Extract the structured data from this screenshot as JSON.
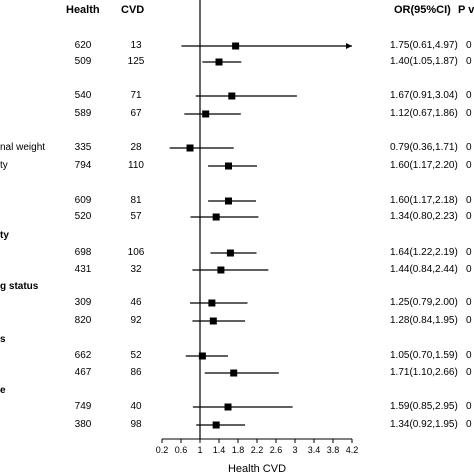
{
  "headers": {
    "health": "Health",
    "cvd": "CVD",
    "or": "OR(95%CI)",
    "p": "P v"
  },
  "groups": [
    {
      "label": "",
      "rows": [
        {
          "label": "",
          "health": "620",
          "cvd": "13",
          "or_text": "1.75(0.61,4.97)",
          "p_text": "0"
        },
        {
          "label": "",
          "health": "509",
          "cvd": "125",
          "or_text": "1.40(1.05,1.87)",
          "p_text": "0"
        }
      ]
    },
    {
      "label": "",
      "rows": [
        {
          "label": "",
          "health": "540",
          "cvd": "71",
          "or_text": "1.67(0.91,3.04)",
          "p_text": "0"
        },
        {
          "label": "",
          "health": "589",
          "cvd": "67",
          "or_text": "1.12(0.67,1.86)",
          "p_text": "0"
        }
      ]
    },
    {
      "label": "",
      "rows": [
        {
          "label": "nal weight",
          "health": "335",
          "cvd": "28",
          "or_text": "0.79(0.36,1.71)",
          "p_text": "0"
        },
        {
          "label": "ty",
          "health": "794",
          "cvd": "110",
          "or_text": "1.60(1.17,2.20)",
          "p_text": "0"
        }
      ]
    },
    {
      "label": "",
      "rows": [
        {
          "label": "",
          "health": "609",
          "cvd": "81",
          "or_text": "1.60(1.17,2.18)",
          "p_text": "0"
        },
        {
          "label": "",
          "health": "520",
          "cvd": "57",
          "or_text": "1.34(0.80,2.23)",
          "p_text": "0"
        }
      ]
    },
    {
      "label": "ty",
      "rows": [
        {
          "label": "",
          "health": "698",
          "cvd": "106",
          "or_text": "1.64(1.22,2.19)",
          "p_text": "0"
        },
        {
          "label": "",
          "health": "431",
          "cvd": "32",
          "or_text": "1.44(0.84,2.44)",
          "p_text": "0"
        }
      ]
    },
    {
      "label": "g status",
      "rows": [
        {
          "label": "",
          "health": "309",
          "cvd": "46",
          "or_text": "1.25(0.79,2.00)",
          "p_text": "0"
        },
        {
          "label": "",
          "health": "820",
          "cvd": "92",
          "or_text": "1.28(0.84,1.95)",
          "p_text": "0"
        }
      ]
    },
    {
      "label": "s",
      "rows": [
        {
          "label": "",
          "health": "662",
          "cvd": "52",
          "or_text": "1.05(0.70,1.59)",
          "p_text": "0"
        },
        {
          "label": "",
          "health": "467",
          "cvd": "86",
          "or_text": "1.71(1.10,2.66)",
          "p_text": "0"
        }
      ]
    },
    {
      "label": "e",
      "rows": [
        {
          "label": "",
          "health": "749",
          "cvd": "40",
          "or_text": "1.59(0.85,2.95)",
          "p_text": "0"
        },
        {
          "label": "",
          "health": "380",
          "cvd": "98",
          "or_text": "1.34(0.92,1.95)",
          "p_text": "0"
        }
      ]
    }
  ],
  "chart_data": {
    "type": "forest",
    "xlabel": "Health CVD",
    "xlim": [
      0.2,
      4.2
    ],
    "xticks": [
      "0.2",
      "0.6",
      "1",
      "1.4",
      "1.8",
      "2.2",
      "2.6",
      "3",
      "3.4",
      "3.8",
      "4.2"
    ],
    "reference_line": 1,
    "estimates": [
      {
        "or": 1.75,
        "lo": 0.61,
        "hi": 4.97,
        "arrow_right": true
      },
      {
        "or": 1.4,
        "lo": 1.05,
        "hi": 1.87
      },
      {
        "or": 1.67,
        "lo": 0.91,
        "hi": 3.04
      },
      {
        "or": 1.12,
        "lo": 0.67,
        "hi": 1.86
      },
      {
        "or": 0.79,
        "lo": 0.36,
        "hi": 1.71
      },
      {
        "or": 1.6,
        "lo": 1.17,
        "hi": 2.2
      },
      {
        "or": 1.6,
        "lo": 1.17,
        "hi": 2.18
      },
      {
        "or": 1.34,
        "lo": 0.8,
        "hi": 2.23
      },
      {
        "or": 1.64,
        "lo": 1.22,
        "hi": 2.19
      },
      {
        "or": 1.44,
        "lo": 0.84,
        "hi": 2.44
      },
      {
        "or": 1.25,
        "lo": 0.79,
        "hi": 2.0
      },
      {
        "or": 1.28,
        "lo": 0.84,
        "hi": 1.95
      },
      {
        "or": 1.05,
        "lo": 0.7,
        "hi": 1.59
      },
      {
        "or": 1.71,
        "lo": 1.1,
        "hi": 2.66
      },
      {
        "or": 1.59,
        "lo": 0.85,
        "hi": 2.95
      },
      {
        "or": 1.34,
        "lo": 0.92,
        "hi": 1.95
      }
    ]
  }
}
